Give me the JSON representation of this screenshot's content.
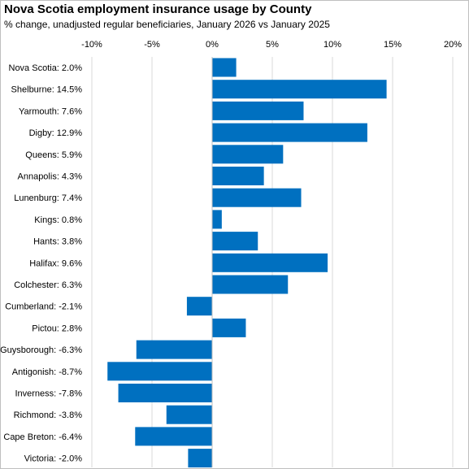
{
  "chart_data": {
    "type": "bar",
    "orientation": "horizontal",
    "title": "Nova Scotia employment insurance usage by County",
    "subtitle": "% change, unadjusted regular beneficiaries, January 2026 vs January 2025",
    "categories": [
      "Nova Scotia: 2.0%",
      "Shelburne: 14.5%",
      "Yarmouth: 7.6%",
      "Digby: 12.9%",
      "Queens: 5.9%",
      "Annapolis: 4.3%",
      "Lunenburg: 7.4%",
      "Kings: 0.8%",
      "Hants: 3.8%",
      "Halifax: 9.6%",
      "Colchester: 6.3%",
      "Cumberland: -2.1%",
      "Pictou: 2.8%",
      "Guysborough: -6.3%",
      "Antigonish: -8.7%",
      "Inverness: -7.8%",
      "Richmond: -3.8%",
      "Cape Breton: -6.4%",
      "Victoria: -2.0%"
    ],
    "values": [
      2.0,
      14.5,
      7.6,
      12.9,
      5.9,
      4.3,
      7.4,
      0.8,
      3.8,
      9.6,
      6.3,
      -2.1,
      2.8,
      -6.3,
      -8.7,
      -7.8,
      -3.8,
      -6.4,
      -2.0
    ],
    "xlim": [
      -10,
      20
    ],
    "x_ticks": [
      -10,
      -5,
      0,
      5,
      10,
      15,
      20
    ],
    "x_tick_labels": [
      "-10%",
      "-5%",
      "0%",
      "5%",
      "10%",
      "15%",
      "20%"
    ],
    "x_axis_position": "top",
    "grid": true,
    "legend": "none",
    "bar_color": "#0070C0",
    "grid_color": "#d9d9d9"
  }
}
